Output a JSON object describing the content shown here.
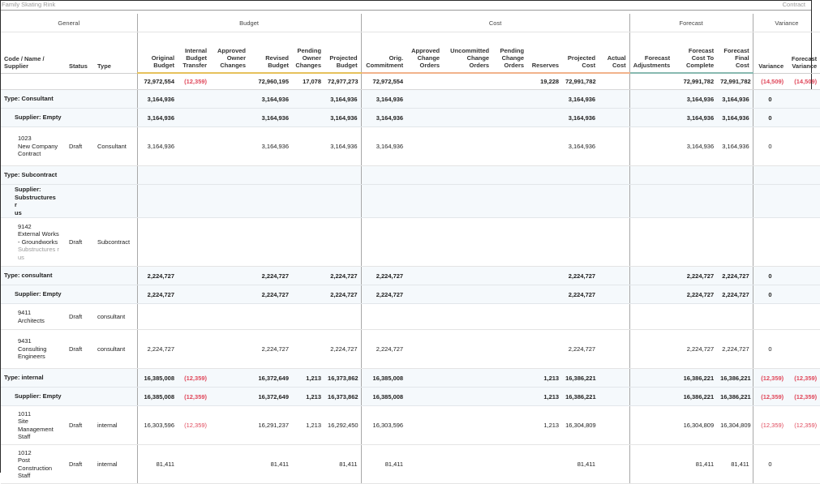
{
  "header": {
    "project_name": "Family Skating Rink",
    "context_label": "Contract"
  },
  "groups": {
    "general": "General",
    "budget": "Budget",
    "cost": "Cost",
    "forecast": "Forecast",
    "variance": "Variance"
  },
  "columns": {
    "code": "Code / Name / Supplier",
    "status": "Status",
    "type": "Type",
    "original_budget": "Original Budget",
    "internal_budget_transfer": "Internal Budget Transfer",
    "approved_owner_changes": "Approved Owner Changes",
    "revised_budget": "Revised Budget",
    "pending_owner_changes": "Pending Owner Changes",
    "projected_budget": "Projected Budget",
    "orig_commitment": "Orig. Commitment",
    "approved_change_orders": "Approved Change Orders",
    "uncommitted_change_orders": "Uncommitted Change Orders",
    "pending_change_orders": "Pending Change Orders",
    "reserves": "Reserves",
    "projected_cost": "Projected Cost",
    "actual_cost": "Actual Cost",
    "forecast_adjustments": "Forecast Adjustments",
    "forecast_cost_to_complete": "Forecast Cost To Complete",
    "forecast_final_cost": "Forecast Final Cost",
    "variance": "Variance",
    "forecast_variance": "Forecast Variance"
  },
  "totals": {
    "ob": "72,972,554",
    "ibt": "(12,359)",
    "aoc": "",
    "rb": "72,960,195",
    "poc": "17,078",
    "pb": "72,977,273",
    "oc": "72,972,554",
    "aco": "",
    "uco": "",
    "pco": "",
    "res": "19,228",
    "pc": "72,991,782",
    "ac": "",
    "fa": "",
    "fctc": "72,991,782",
    "ffc": "72,991,782",
    "var": "(14,509)",
    "fvar": "(14,509)"
  },
  "rows": [
    {
      "kind": "type",
      "label": "Type: Consultant",
      "ob": "3,164,936",
      "ibt": "",
      "rb": "3,164,936",
      "poc": "",
      "pb": "3,164,936",
      "oc": "3,164,936",
      "res": "",
      "pc": "3,164,936",
      "fctc": "3,164,936",
      "ffc": "3,164,936",
      "var": "0",
      "fvar": ""
    },
    {
      "kind": "sup",
      "label": "Supplier: Empty",
      "ob": "3,164,936",
      "ibt": "",
      "rb": "3,164,936",
      "poc": "",
      "pb": "3,164,936",
      "oc": "3,164,936",
      "res": "",
      "pc": "3,164,936",
      "fctc": "3,164,936",
      "ffc": "3,164,936",
      "var": "0",
      "fvar": ""
    },
    {
      "kind": "line",
      "code": "1023",
      "name": "New Company Contract",
      "supplier": "",
      "status": "Draft",
      "type": "Consultant",
      "ob": "3,164,936",
      "ibt": "",
      "rb": "3,164,936",
      "poc": "",
      "pb": "3,164,936",
      "oc": "3,164,936",
      "res": "",
      "pc": "3,164,936",
      "fctc": "3,164,936",
      "ffc": "3,164,936",
      "var": "0",
      "fvar": ""
    },
    {
      "kind": "type",
      "label": "Type: Subcontract",
      "ob": "",
      "ibt": "",
      "rb": "",
      "poc": "",
      "pb": "",
      "oc": "",
      "res": "",
      "pc": "",
      "fctc": "",
      "ffc": "",
      "var": "",
      "fvar": ""
    },
    {
      "kind": "sup",
      "label": "Supplier: Substructures r us",
      "ob": "",
      "ibt": "",
      "rb": "",
      "poc": "",
      "pb": "",
      "oc": "",
      "res": "",
      "pc": "",
      "fctc": "",
      "ffc": "",
      "var": "",
      "fvar": ""
    },
    {
      "kind": "line",
      "code": "9142",
      "name": "External Works - Groundworks",
      "supplier": "Substructures r us",
      "status": "Draft",
      "type": "Subcontract",
      "ob": "",
      "ibt": "",
      "rb": "",
      "poc": "",
      "pb": "",
      "oc": "",
      "res": "",
      "pc": "",
      "fctc": "",
      "ffc": "",
      "var": "",
      "fvar": ""
    },
    {
      "kind": "type",
      "label": "Type: consultant",
      "ob": "2,224,727",
      "ibt": "",
      "rb": "2,224,727",
      "poc": "",
      "pb": "2,224,727",
      "oc": "2,224,727",
      "res": "",
      "pc": "2,224,727",
      "fctc": "2,224,727",
      "ffc": "2,224,727",
      "var": "0",
      "fvar": ""
    },
    {
      "kind": "sup",
      "label": "Supplier: Empty",
      "ob": "2,224,727",
      "ibt": "",
      "rb": "2,224,727",
      "poc": "",
      "pb": "2,224,727",
      "oc": "2,224,727",
      "res": "",
      "pc": "2,224,727",
      "fctc": "2,224,727",
      "ffc": "2,224,727",
      "var": "0",
      "fvar": ""
    },
    {
      "kind": "line",
      "code": "9411",
      "name": "Architects",
      "supplier": "",
      "status": "Draft",
      "type": "consultant",
      "ob": "",
      "ibt": "",
      "rb": "",
      "poc": "",
      "pb": "",
      "oc": "",
      "res": "",
      "pc": "",
      "fctc": "",
      "ffc": "",
      "var": "",
      "fvar": ""
    },
    {
      "kind": "line",
      "code": "9431",
      "name": "Consulting Engineers",
      "supplier": "",
      "status": "Draft",
      "type": "consultant",
      "ob": "2,224,727",
      "ibt": "",
      "rb": "2,224,727",
      "poc": "",
      "pb": "2,224,727",
      "oc": "2,224,727",
      "res": "",
      "pc": "2,224,727",
      "fctc": "2,224,727",
      "ffc": "2,224,727",
      "var": "0",
      "fvar": ""
    },
    {
      "kind": "type",
      "label": "Type: internal",
      "ob": "16,385,008",
      "ibt": "(12,359)",
      "rb": "16,372,649",
      "poc": "1,213",
      "pb": "16,373,862",
      "oc": "16,385,008",
      "res": "1,213",
      "pc": "16,386,221",
      "fctc": "16,386,221",
      "ffc": "16,386,221",
      "var": "(12,359)",
      "fvar": "(12,359)"
    },
    {
      "kind": "sup",
      "label": "Supplier: Empty",
      "ob": "16,385,008",
      "ibt": "(12,359)",
      "rb": "16,372,649",
      "poc": "1,213",
      "pb": "16,373,862",
      "oc": "16,385,008",
      "res": "1,213",
      "pc": "16,386,221",
      "fctc": "16,386,221",
      "ffc": "16,386,221",
      "var": "(12,359)",
      "fvar": "(12,359)"
    },
    {
      "kind": "line",
      "code": "1011",
      "name": "Site Management Staff",
      "supplier": "",
      "status": "Draft",
      "type": "internal",
      "ob": "16,303,596",
      "ibt": "(12,359)",
      "rb": "16,291,237",
      "poc": "1,213",
      "pb": "16,292,450",
      "oc": "16,303,596",
      "res": "1,213",
      "pc": "16,304,809",
      "fctc": "16,304,809",
      "ffc": "16,304,809",
      "var": "(12,359)",
      "fvar": "(12,359)"
    },
    {
      "kind": "line",
      "code": "1012",
      "name": "Post Construction Staff",
      "supplier": "",
      "status": "Draft",
      "type": "internal",
      "ob": "81,411",
      "ibt": "",
      "rb": "81,411",
      "poc": "",
      "pb": "81,411",
      "oc": "81,411",
      "res": "",
      "pc": "81,411",
      "fctc": "81,411",
      "ffc": "81,411",
      "var": "0",
      "fvar": ""
    }
  ]
}
